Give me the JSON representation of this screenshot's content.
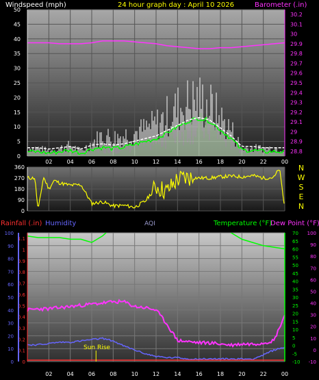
{
  "colors": {
    "wind": "#ffffff",
    "gust": "#ffffff",
    "wind_avg": "#00ff00",
    "barometer": "#ff33ff",
    "direction": "#ffff00",
    "rain": "#ff3030",
    "humidity": "#6666ff",
    "aqi": "#9999cc",
    "temperature": "#00ff00",
    "dewpoint": "#ff33ff",
    "sunrise": "#ffff00",
    "title": "#ffff00"
  },
  "header": {
    "title": "24 hour graph day : April 10 2026",
    "left_label": "Windspeed (mph)",
    "right_label": "Barometer (.in)"
  },
  "wind_chart": {
    "ylim": [
      0,
      50
    ],
    "left_ticks": [
      "0",
      "5",
      "10",
      "15",
      "20",
      "25",
      "30",
      "35",
      "40",
      "45",
      "50"
    ],
    "baro_ticks": [
      "28.8",
      "28.9",
      "29",
      "29.1",
      "29.2",
      "29.3",
      "29.4",
      "29.5",
      "29.6",
      "29.7",
      "29.8",
      "29.9",
      "30",
      "30.1",
      "30.2"
    ],
    "x_ticks": [
      "02",
      "04",
      "06",
      "08",
      "10",
      "12",
      "14",
      "16",
      "18",
      "20",
      "22",
      "00"
    ]
  },
  "direction_chart": {
    "ticks": [
      "0",
      "90",
      "180",
      "270",
      "360"
    ],
    "compass": [
      "N",
      "W",
      "S",
      "E",
      "N"
    ]
  },
  "lower_header": {
    "rain": "Rainfall (.in)",
    "humidity": "Humidity",
    "aqi": "AQI",
    "temperature": "Temperature (°F)",
    "dewpoint": "Dew Point (°F)"
  },
  "lower_chart": {
    "humidity_ticks": [
      "0",
      "10",
      "20",
      "30",
      "40",
      "50",
      "60",
      "70",
      "80",
      "90",
      "100"
    ],
    "rain_ticks": [
      "0",
      "0.1",
      "0.2",
      "0.3",
      "0.4",
      "0.5",
      "0.6",
      "0.7",
      "0.8",
      "0.9",
      "1",
      "1.1"
    ],
    "temp_ticks": [
      "-10",
      "-5",
      "0",
      "5",
      "10",
      "15",
      "20",
      "25",
      "30",
      "35",
      "40",
      "45",
      "50",
      "55",
      "60",
      "65",
      "70"
    ],
    "dew_ticks": [
      "-10",
      "0",
      "10",
      "20",
      "30",
      "40",
      "50",
      "60",
      "70",
      "80",
      "90",
      "100"
    ],
    "x_ticks": [
      "02",
      "04",
      "06",
      "08",
      "10",
      "12",
      "14",
      "16",
      "18",
      "20",
      "22",
      "00"
    ],
    "sunrise_label": "Sun Rise"
  },
  "chart_data": [
    {
      "type": "line",
      "name": "wind",
      "x_hours": [
        0,
        1,
        2,
        3,
        4,
        5,
        6,
        7,
        8,
        9,
        10,
        11,
        12,
        13,
        14,
        15,
        16,
        17,
        18,
        19,
        20,
        21,
        22,
        23,
        24
      ],
      "series": [
        {
          "name": "gust",
          "values": [
            3,
            3,
            2,
            3,
            4,
            2,
            5,
            8,
            7,
            8,
            9,
            10,
            12,
            15,
            18,
            20,
            21,
            19,
            14,
            10,
            3,
            3,
            3,
            3,
            3
          ]
        },
        {
          "name": "wind",
          "values": [
            1.5,
            1.5,
            1,
            1.5,
            2,
            1,
            2.5,
            3,
            2.5,
            3,
            4,
            5,
            6,
            8,
            10,
            12,
            13,
            12,
            9,
            6,
            2,
            2,
            1.5,
            1.5,
            1.5
          ]
        },
        {
          "name": "barometer",
          "values": [
            29.91,
            29.91,
            29.91,
            29.9,
            29.9,
            29.9,
            29.91,
            29.93,
            29.93,
            29.93,
            29.92,
            29.91,
            29.9,
            29.88,
            29.87,
            29.86,
            29.85,
            29.85,
            29.86,
            29.86,
            29.87,
            29.88,
            29.89,
            29.9,
            29.91
          ]
        }
      ]
    },
    {
      "type": "line",
      "name": "wind direction",
      "ylim": [
        0,
        360
      ],
      "x_hours": [
        0,
        0.7,
        1,
        1.5,
        2,
        2.5,
        3,
        3.5,
        4,
        5,
        6,
        7,
        8,
        9,
        10,
        11,
        12,
        13,
        14,
        15,
        16,
        17,
        18,
        19,
        20,
        21,
        22,
        23,
        23.5,
        24
      ],
      "values": [
        270,
        270,
        0,
        280,
        180,
        250,
        230,
        220,
        210,
        215,
        60,
        75,
        40,
        45,
        30,
        80,
        200,
        160,
        260,
        275,
        270,
        270,
        280,
        285,
        280,
        290,
        270,
        275,
        350,
        20
      ]
    },
    {
      "type": "line",
      "name": "lower",
      "x_hours": [
        0,
        1,
        2,
        3,
        4,
        5,
        6,
        7,
        8,
        9,
        10,
        11,
        12,
        13,
        14,
        15,
        16,
        17,
        18,
        19,
        20,
        21,
        22,
        23,
        24
      ],
      "series": [
        {
          "name": "Temperature",
          "values": [
            68,
            67,
            67,
            67,
            66,
            66,
            64,
            68,
            74,
            80,
            86,
            90,
            92,
            92,
            90,
            86,
            82,
            78,
            74,
            70,
            66,
            64,
            62,
            61,
            60
          ]
        },
        {
          "name": "Dew Point",
          "values": [
            34,
            35,
            35,
            36,
            37,
            38,
            39,
            40,
            41,
            41,
            37,
            36,
            34,
            22,
            8,
            7,
            6,
            6,
            5,
            4,
            5,
            5,
            6,
            8,
            30
          ]
        },
        {
          "name": "Humidity",
          "values": [
            13,
            13,
            14,
            15,
            15,
            16,
            17,
            18,
            16,
            12,
            9,
            6,
            4,
            3,
            3,
            2,
            2,
            2,
            2,
            2,
            2,
            2,
            5,
            9,
            11
          ]
        },
        {
          "name": "Rainfall",
          "values": [
            0,
            0,
            0,
            0,
            0,
            0,
            0,
            0,
            0,
            0,
            0,
            0,
            0,
            0,
            0,
            0,
            0,
            0,
            0,
            0,
            0,
            0,
            0,
            0,
            0
          ]
        }
      ]
    }
  ]
}
